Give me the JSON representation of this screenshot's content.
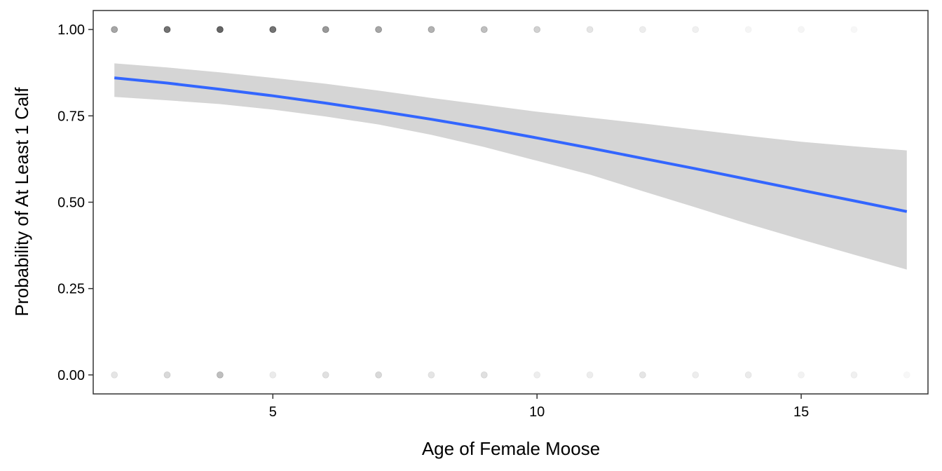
{
  "chart_data": {
    "type": "scatter",
    "title": "",
    "xlabel": "Age of Female Moose",
    "ylabel": "Probability of At Least 1 Calf",
    "xlim": [
      1.6,
      17.4
    ],
    "ylim": [
      -0.055,
      1.055
    ],
    "x_ticks": [
      5,
      10,
      15
    ],
    "y_ticks": [
      0.0,
      0.25,
      0.5,
      0.75,
      1.0
    ],
    "x_tick_labels": [
      "5",
      "10",
      "15"
    ],
    "y_tick_labels": [
      "0.00",
      "0.25",
      "0.50",
      "0.75",
      "1.00"
    ],
    "grid": false,
    "colors": {
      "line": "#3366ff",
      "ribbon": "#d5d5d5",
      "points": "#000000"
    },
    "points": [
      {
        "x": 2,
        "y": 1,
        "alpha": 0.35
      },
      {
        "x": 3,
        "y": 1,
        "alpha": 0.55
      },
      {
        "x": 4,
        "y": 1,
        "alpha": 0.6
      },
      {
        "x": 5,
        "y": 1,
        "alpha": 0.55
      },
      {
        "x": 6,
        "y": 1,
        "alpha": 0.4
      },
      {
        "x": 7,
        "y": 1,
        "alpha": 0.35
      },
      {
        "x": 8,
        "y": 1,
        "alpha": 0.3
      },
      {
        "x": 9,
        "y": 1,
        "alpha": 0.25
      },
      {
        "x": 10,
        "y": 1,
        "alpha": 0.18
      },
      {
        "x": 11,
        "y": 1,
        "alpha": 0.1
      },
      {
        "x": 12,
        "y": 1,
        "alpha": 0.07
      },
      {
        "x": 13,
        "y": 1,
        "alpha": 0.06
      },
      {
        "x": 14,
        "y": 1,
        "alpha": 0.04
      },
      {
        "x": 15,
        "y": 1,
        "alpha": 0.04
      },
      {
        "x": 16,
        "y": 1,
        "alpha": 0.03
      },
      {
        "x": 2,
        "y": 0,
        "alpha": 0.1
      },
      {
        "x": 3,
        "y": 0,
        "alpha": 0.15
      },
      {
        "x": 4,
        "y": 0,
        "alpha": 0.25
      },
      {
        "x": 5,
        "y": 0,
        "alpha": 0.08
      },
      {
        "x": 6,
        "y": 0,
        "alpha": 0.12
      },
      {
        "x": 7,
        "y": 0,
        "alpha": 0.15
      },
      {
        "x": 8,
        "y": 0,
        "alpha": 0.1
      },
      {
        "x": 9,
        "y": 0,
        "alpha": 0.12
      },
      {
        "x": 10,
        "y": 0,
        "alpha": 0.07
      },
      {
        "x": 11,
        "y": 0,
        "alpha": 0.07
      },
      {
        "x": 12,
        "y": 0,
        "alpha": 0.1
      },
      {
        "x": 13,
        "y": 0,
        "alpha": 0.07
      },
      {
        "x": 14,
        "y": 0,
        "alpha": 0.08
      },
      {
        "x": 15,
        "y": 0,
        "alpha": 0.05
      },
      {
        "x": 16,
        "y": 0,
        "alpha": 0.06
      },
      {
        "x": 17,
        "y": 0,
        "alpha": 0.03
      }
    ],
    "fit": {
      "x": [
        2,
        3,
        4,
        5,
        6,
        7,
        8,
        9,
        10,
        11,
        12,
        13,
        14,
        15,
        16,
        17
      ],
      "y": [
        0.86,
        0.845,
        0.827,
        0.808,
        0.787,
        0.764,
        0.74,
        0.714,
        0.686,
        0.657,
        0.627,
        0.597,
        0.566,
        0.535,
        0.504,
        0.473
      ],
      "lower": [
        0.805,
        0.795,
        0.784,
        0.768,
        0.748,
        0.725,
        0.695,
        0.66,
        0.62,
        0.58,
        0.532,
        0.485,
        0.437,
        0.392,
        0.348,
        0.305
      ],
      "upper": [
        0.902,
        0.89,
        0.876,
        0.86,
        0.843,
        0.823,
        0.802,
        0.782,
        0.762,
        0.745,
        0.728,
        0.71,
        0.692,
        0.675,
        0.662,
        0.65
      ]
    }
  }
}
